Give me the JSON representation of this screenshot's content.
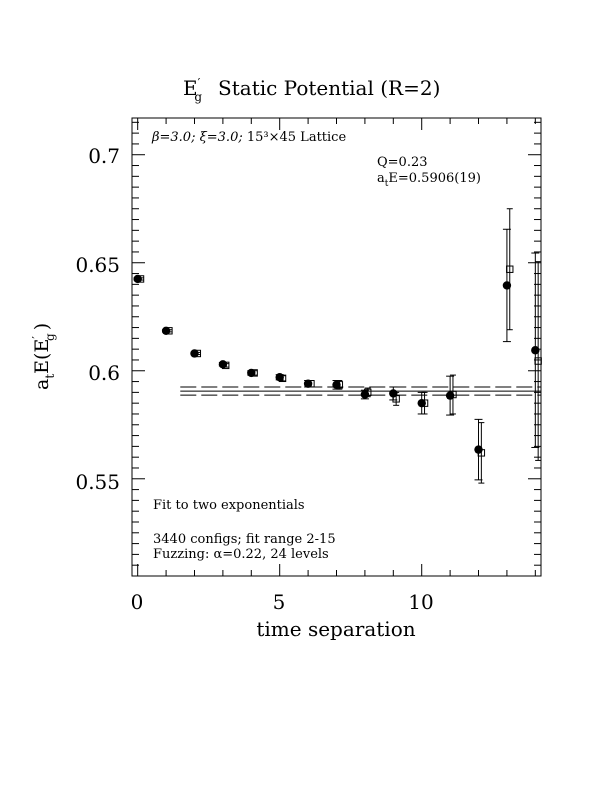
{
  "chart_data": {
    "type": "scatter",
    "title": {
      "main": "E",
      "main_sup": "′",
      "main_sub": "g",
      "rest": "Static Potential (R=2)"
    },
    "subtitle": {
      "beta": "β=3.0;",
      "xi": "ξ=3.0;",
      "lattice": "15³×45 Lattice"
    },
    "fit_info": {
      "q": "Q=0.23",
      "ate_prefix": "a",
      "ate_sub": "t",
      "ate_rest": "E=0.5906(19)"
    },
    "notes": {
      "fit": "Fit to two exponentials",
      "configs": "3440 configs; fit range 2-15",
      "fuzzing": "Fuzzing: α=0.22, 24 levels"
    },
    "xlabel": "time separation",
    "ylabel": {
      "a": "a",
      "t": "t",
      "e": "E(E",
      "prime": "′",
      "g": "g",
      "close": ")"
    },
    "xlim": [
      -0.2,
      14.2
    ],
    "ylim": [
      0.505,
      0.717
    ],
    "x_ticks": [
      {
        "value": 0,
        "label": "0"
      },
      {
        "value": 5,
        "label": "5"
      },
      {
        "value": 10,
        "label": "10"
      }
    ],
    "y_ticks": [
      {
        "value": 0.55,
        "label": "0.55"
      },
      {
        "value": 0.6,
        "label": "0.6"
      },
      {
        "value": 0.65,
        "label": "0.65"
      },
      {
        "value": 0.7,
        "label": "0.7"
      }
    ],
    "fit": {
      "value": 0.5906,
      "error": 0.0019,
      "x_range": [
        1.5,
        14.2
      ]
    },
    "series": [
      {
        "marker": "filled-circle",
        "points": [
          {
            "x": 0,
            "y": 0.6425,
            "err": 0.0005
          },
          {
            "x": 1,
            "y": 0.6185,
            "err": 0.0005
          },
          {
            "x": 2,
            "y": 0.608,
            "err": 0.0005
          },
          {
            "x": 3,
            "y": 0.603,
            "err": 0.0008
          },
          {
            "x": 4,
            "y": 0.599,
            "err": 0.001
          },
          {
            "x": 5,
            "y": 0.597,
            "err": 0.0012
          },
          {
            "x": 6,
            "y": 0.594,
            "err": 0.0015
          },
          {
            "x": 7,
            "y": 0.5935,
            "err": 0.002
          },
          {
            "x": 8,
            "y": 0.589,
            "err": 0.002
          },
          {
            "x": 9,
            "y": 0.5895,
            "err": 0.003
          },
          {
            "x": 10,
            "y": 0.585,
            "err": 0.005
          },
          {
            "x": 11,
            "y": 0.5885,
            "err": 0.009
          },
          {
            "x": 12,
            "y": 0.5635,
            "err": 0.014
          },
          {
            "x": 13,
            "y": 0.6395,
            "err": 0.026
          },
          {
            "x": 14,
            "y": 0.6095,
            "err": 0.045
          }
        ]
      },
      {
        "marker": "open-square",
        "points": [
          {
            "x": 0.1,
            "y": 0.6425,
            "err": 0.0005
          },
          {
            "x": 1.1,
            "y": 0.6185,
            "err": 0.0005
          },
          {
            "x": 2.1,
            "y": 0.608,
            "err": 0.0005
          },
          {
            "x": 3.1,
            "y": 0.6025,
            "err": 0.0008
          },
          {
            "x": 4.1,
            "y": 0.599,
            "err": 0.001
          },
          {
            "x": 5.1,
            "y": 0.5965,
            "err": 0.0012
          },
          {
            "x": 6.1,
            "y": 0.594,
            "err": 0.0015
          },
          {
            "x": 7.1,
            "y": 0.5935,
            "err": 0.002
          },
          {
            "x": 8.1,
            "y": 0.59,
            "err": 0.002
          },
          {
            "x": 9.1,
            "y": 0.587,
            "err": 0.003
          },
          {
            "x": 10.1,
            "y": 0.585,
            "err": 0.005
          },
          {
            "x": 11.1,
            "y": 0.589,
            "err": 0.009
          },
          {
            "x": 12.1,
            "y": 0.562,
            "err": 0.014
          },
          {
            "x": 13.1,
            "y": 0.647,
            "err": 0.028
          },
          {
            "x": 14.1,
            "y": 0.6045,
            "err": 0.046
          }
        ]
      }
    ],
    "grid": false,
    "legend": "none",
    "colors": {
      "ink": "#000000",
      "background": "#ffffff"
    }
  }
}
